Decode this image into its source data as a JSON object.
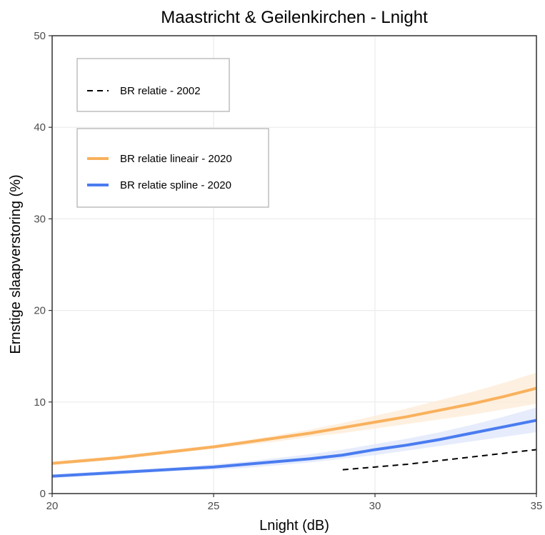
{
  "chart_data": {
    "type": "line",
    "title": "Maastricht & Geilenkirchen - Lnight",
    "xlabel": "Lnight (dB)",
    "ylabel": "Ernstige slaapverstoring (%)",
    "xlim": [
      20,
      35
    ],
    "ylim": [
      0,
      50
    ],
    "xticks": [
      20,
      25,
      30,
      35
    ],
    "yticks": [
      0,
      10,
      20,
      30,
      40,
      50
    ],
    "grid": true,
    "legend_placement": "top-left",
    "series": [
      {
        "name": "BR relatie - 2002",
        "style": "dashed",
        "color": "#000000",
        "x": [
          29,
          30,
          31,
          32,
          33,
          34,
          35
        ],
        "y": [
          2.6,
          2.9,
          3.2,
          3.6,
          4.0,
          4.4,
          4.8
        ]
      },
      {
        "name": "BR relatie lineair - 2020",
        "style": "solid",
        "color": "#F9B15D",
        "band_color": "#FDEBD6",
        "x": [
          20,
          21,
          22,
          23,
          24,
          25,
          26,
          27,
          28,
          29,
          30,
          31,
          32,
          33,
          34,
          35
        ],
        "y": [
          3.3,
          3.6,
          3.9,
          4.3,
          4.7,
          5.1,
          5.6,
          6.1,
          6.6,
          7.2,
          7.8,
          8.4,
          9.1,
          9.8,
          10.6,
          11.5
        ],
        "y_lower": [
          3.1,
          3.4,
          3.7,
          4.1,
          4.5,
          4.9,
          5.3,
          5.7,
          6.2,
          6.6,
          7.1,
          7.6,
          8.1,
          8.6,
          9.2,
          9.8
        ],
        "y_upper": [
          3.5,
          3.8,
          4.1,
          4.5,
          4.9,
          5.3,
          5.8,
          6.4,
          7.0,
          7.7,
          8.5,
          9.3,
          10.2,
          11.1,
          12.1,
          13.2
        ]
      },
      {
        "name": "BR relatie spline - 2020",
        "style": "solid",
        "color": "#4A7CF0",
        "band_color": "#DDE6FB",
        "x": [
          20,
          21,
          22,
          23,
          24,
          25,
          26,
          27,
          28,
          29,
          30,
          31,
          32,
          33,
          34,
          35
        ],
        "y": [
          1.9,
          2.1,
          2.3,
          2.5,
          2.7,
          2.9,
          3.2,
          3.5,
          3.8,
          4.2,
          4.8,
          5.3,
          5.9,
          6.6,
          7.3,
          8.0
        ],
        "y_lower": [
          1.7,
          1.9,
          2.1,
          2.3,
          2.5,
          2.6,
          2.8,
          3.1,
          3.4,
          3.8,
          4.2,
          4.7,
          5.2,
          5.7,
          6.2,
          6.7
        ],
        "y_upper": [
          2.1,
          2.3,
          2.5,
          2.7,
          2.9,
          3.2,
          3.5,
          3.9,
          4.3,
          4.8,
          5.4,
          6.0,
          6.7,
          7.5,
          8.4,
          9.4
        ]
      }
    ]
  }
}
